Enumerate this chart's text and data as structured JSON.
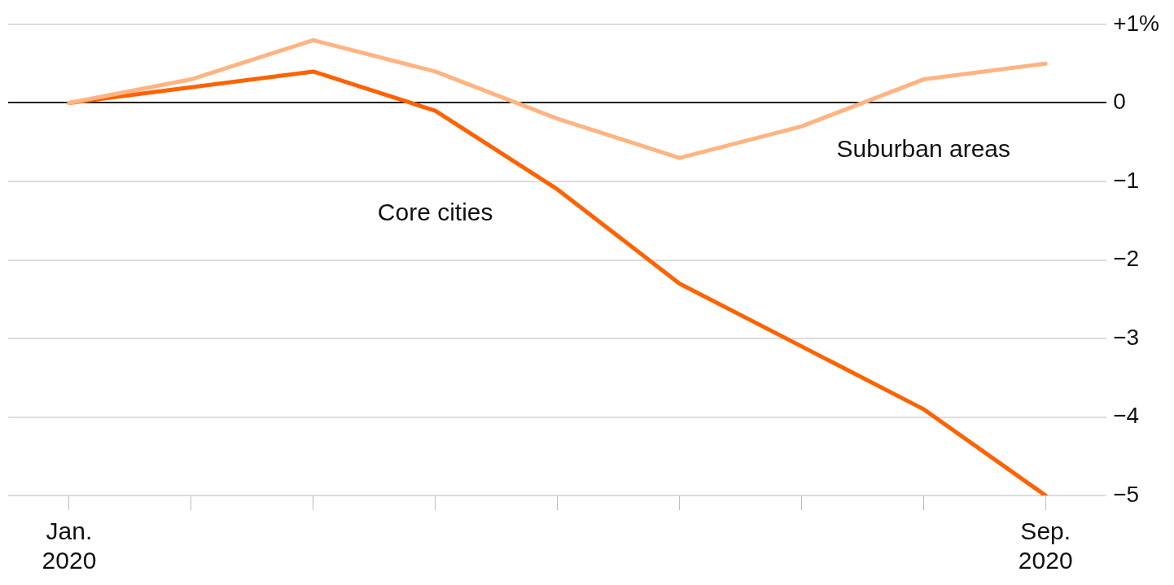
{
  "chart_data": {
    "type": "line",
    "categories": [
      "Jan. 2020",
      null,
      null,
      null,
      null,
      null,
      null,
      null,
      "Sep. 2020"
    ],
    "series": [
      {
        "name": "Suburban areas",
        "color": "#ffb482",
        "values": [
          0,
          0.3,
          0.8,
          0.4,
          -0.2,
          -0.7,
          -0.3,
          0.3,
          0.5
        ]
      },
      {
        "name": "Core cities",
        "color": "#ff6200",
        "values": [
          0,
          0.2,
          0.4,
          -0.1,
          -1.1,
          -2.3,
          -3.1,
          -3.9,
          -5.0
        ]
      }
    ],
    "ylim": [
      -5,
      1
    ],
    "yticks": [
      {
        "value": 1,
        "label": "+1%"
      },
      0,
      {
        "value": -1,
        "label": "−1"
      },
      {
        "value": -2,
        "label": "−2"
      },
      {
        "value": -3,
        "label": "−3"
      },
      {
        "value": -4,
        "label": "−4"
      },
      {
        "value": -5,
        "label": "−5"
      }
    ],
    "grid": "y",
    "legend": false,
    "marker": "none",
    "line_style": "solid"
  }
}
